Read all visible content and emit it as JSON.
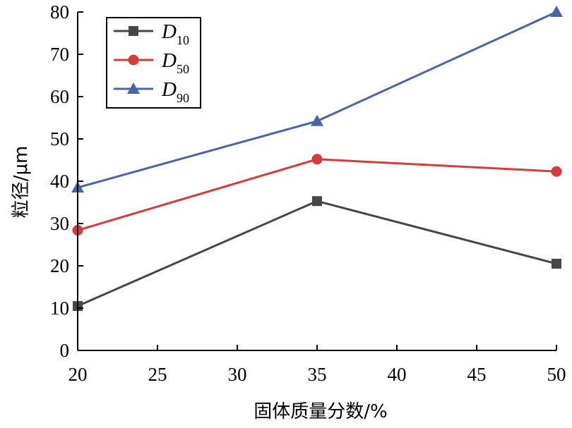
{
  "chart_data": {
    "type": "line",
    "xlabel": "固体质量分数/%",
    "ylabel": "粒径/μm",
    "xlim": [
      20,
      50
    ],
    "ylim": [
      0,
      80
    ],
    "xticks": [
      20,
      25,
      30,
      35,
      40,
      45,
      50
    ],
    "yticks": [
      0,
      10,
      20,
      30,
      40,
      50,
      60,
      70,
      80
    ],
    "x": [
      20,
      35,
      50
    ],
    "grid": false,
    "legend_position": "top-left",
    "series": [
      {
        "name": "D",
        "subscript": "10",
        "marker": "square",
        "color": "#4a4647",
        "values": [
          10.5,
          35.3,
          20.5
        ]
      },
      {
        "name": "D",
        "subscript": "50",
        "marker": "circle",
        "color": "#d63b3b",
        "values": [
          28.4,
          45.2,
          42.3
        ]
      },
      {
        "name": "D",
        "subscript": "90",
        "marker": "triangle",
        "color": "#4a64a8",
        "values": [
          38.5,
          54.2,
          80.0
        ]
      }
    ]
  }
}
